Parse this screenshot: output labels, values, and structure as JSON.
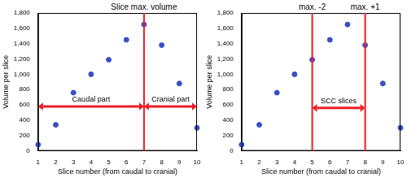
{
  "chart_data": [
    {
      "type": "scatter",
      "x": [
        1,
        2,
        3,
        4,
        5,
        6,
        7,
        8,
        9,
        10
      ],
      "values": [
        80,
        340,
        760,
        1000,
        1190,
        1450,
        1650,
        1380,
        880,
        300
      ],
      "color": "#3a4fc4",
      "marker": "circle",
      "xlim": [
        1,
        10
      ],
      "ylim": [
        0,
        1800
      ],
      "xticks": [
        1,
        2,
        3,
        4,
        5,
        6,
        7,
        8,
        9,
        10
      ],
      "yticks": [
        0,
        200,
        400,
        600,
        800,
        1000,
        1200,
        1400,
        1600,
        1800
      ],
      "grid": false,
      "x_label": "Slice number (from caudal to cranial)",
      "y_label": "Volume per slice",
      "vlines": [
        {
          "x": 7,
          "label": "Slice max. volume",
          "color": "#ee1c24"
        }
      ],
      "spans": [
        {
          "from": 1,
          "to": 7,
          "y": 580,
          "label": "Caudal part",
          "color": "#ee1c24"
        },
        {
          "from": 7,
          "to": 10,
          "y": 580,
          "label": "Cranial part",
          "color": "#ee1c24"
        }
      ]
    },
    {
      "type": "scatter",
      "x": [
        1,
        2,
        3,
        4,
        5,
        6,
        7,
        8,
        9,
        10
      ],
      "values": [
        80,
        340,
        760,
        1000,
        1190,
        1450,
        1650,
        1380,
        880,
        300
      ],
      "color": "#3a4fc4",
      "marker": "circle",
      "xlim": [
        1,
        10
      ],
      "ylim": [
        0,
        1800
      ],
      "xticks": [
        1,
        2,
        3,
        4,
        5,
        6,
        7,
        8,
        9,
        10
      ],
      "yticks": [
        0,
        200,
        400,
        600,
        800,
        1000,
        1200,
        1400,
        1600,
        1800
      ],
      "grid": false,
      "x_label": "Slice number (from caudal to cranial)",
      "y_label": "Volume per slice",
      "vlines": [
        {
          "x": 5,
          "label": "max. -2",
          "color": "#ee1c24"
        },
        {
          "x": 8,
          "label": "max. +1",
          "color": "#ee1c24"
        }
      ],
      "spans": [
        {
          "from": 5,
          "to": 8,
          "y": 560,
          "label": "SCC slices",
          "color": "#ee1c24"
        }
      ]
    }
  ]
}
